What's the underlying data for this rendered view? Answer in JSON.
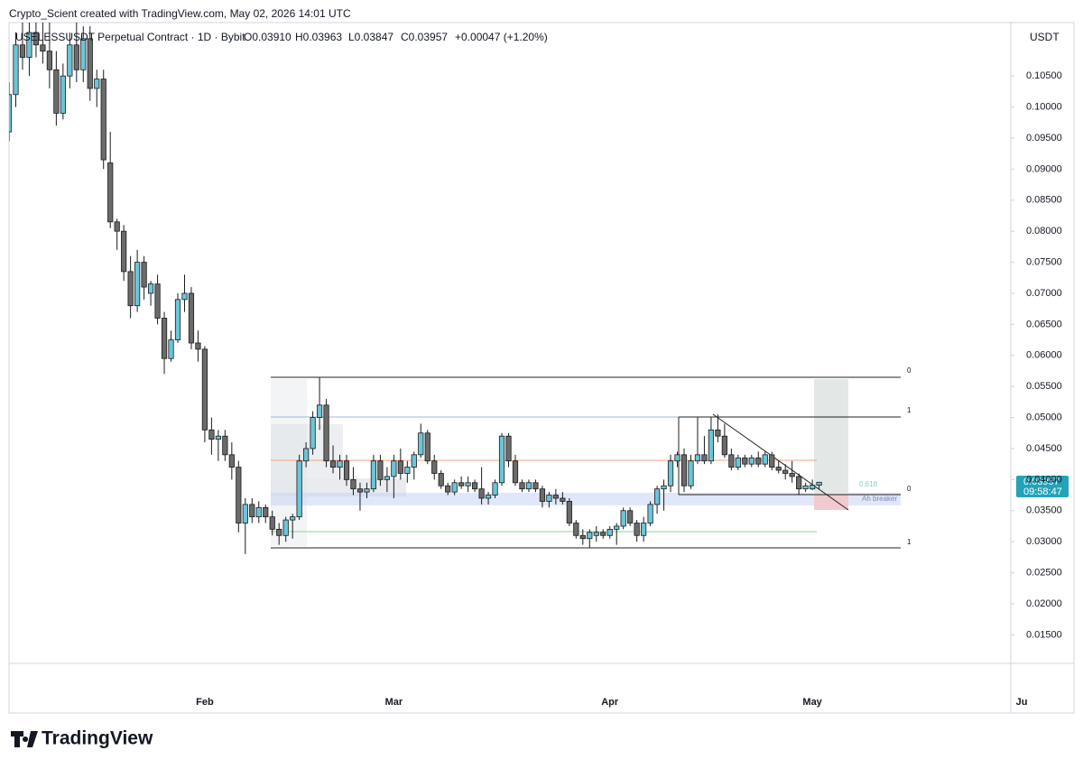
{
  "header": {
    "credit": "Crypto_Scient created with TradingView.com, May 02, 2026 14:01 UTC",
    "symbol": "USELESSUSDT Perpetual Contract · 1D · Bybit",
    "open": "O0.03910",
    "high": "H0.03963",
    "low": "L0.03847",
    "close": "C0.03957",
    "change": "+0.00047 (+1.20%)",
    "currency": "USDT",
    "last_price": "0.03957",
    "countdown": "09:58:47",
    "logo": "TradingView"
  },
  "drawings": {
    "fib_top_0": "0",
    "fib_top_1": "1",
    "fib_right_1": "1",
    "fib_right_0": "0",
    "fib_618": "0.618",
    "breaker": "Ah breaker"
  },
  "chart_data": {
    "type": "candlestick",
    "up_color": "#6cc5da",
    "down_color": "#6b6b6b",
    "outline": "#1a1a1a",
    "ylim": [
      0.0104,
      0.1136
    ],
    "yticks": [
      {
        "value": 0.015,
        "label": "0.01500"
      },
      {
        "value": 0.02,
        "label": "0.02000"
      },
      {
        "value": 0.025,
        "label": "0.02500"
      },
      {
        "value": 0.03,
        "label": "0.03000"
      },
      {
        "value": 0.035,
        "label": "0.03500"
      },
      {
        "value": 0.04,
        "label": "0.04000"
      },
      {
        "value": 0.045,
        "label": "0.04500"
      },
      {
        "value": 0.05,
        "label": "0.05000"
      },
      {
        "value": 0.055,
        "label": "0.05500"
      },
      {
        "value": 0.06,
        "label": "0.06000"
      },
      {
        "value": 0.065,
        "label": "0.06500"
      },
      {
        "value": 0.07,
        "label": "0.07000"
      },
      {
        "value": 0.075,
        "label": "0.07500"
      },
      {
        "value": 0.08,
        "label": "0.08000"
      },
      {
        "value": 0.085,
        "label": "0.08500"
      },
      {
        "value": 0.09,
        "label": "0.09000"
      },
      {
        "value": 0.095,
        "label": "0.09500"
      },
      {
        "value": 0.1,
        "label": "0.10000"
      },
      {
        "value": 0.105,
        "label": "0.10500"
      }
    ],
    "categories": [
      null,
      null,
      null,
      null,
      null,
      null,
      null,
      null,
      null,
      null,
      null,
      null,
      null,
      null,
      null,
      null,
      null,
      null,
      null,
      null,
      null,
      null,
      null,
      null,
      null,
      null,
      null,
      null,
      null,
      "Feb",
      null,
      null,
      null,
      null,
      null,
      null,
      null,
      null,
      null,
      null,
      null,
      null,
      null,
      null,
      null,
      null,
      null,
      null,
      null,
      null,
      null,
      null,
      null,
      null,
      null,
      null,
      null,
      "Mar",
      null,
      null,
      null,
      null,
      null,
      null,
      null,
      null,
      null,
      null,
      null,
      null,
      null,
      null,
      null,
      null,
      null,
      null,
      null,
      null,
      null,
      null,
      null,
      null,
      null,
      null,
      null,
      null,
      null,
      null,
      null,
      "Apr",
      null,
      null,
      null,
      null,
      null,
      null,
      null,
      null,
      null,
      null,
      null,
      null,
      null,
      null,
      null,
      null,
      null,
      null,
      null,
      null,
      null,
      null,
      null,
      null,
      null,
      null,
      null,
      null,
      null,
      "May",
      null,
      null,
      null,
      null,
      null,
      null,
      null,
      null,
      null,
      null,
      null,
      null,
      null,
      null,
      null,
      null,
      null,
      null,
      null,
      null,
      null,
      null,
      null,
      null,
      null,
      null,
      null,
      null,
      null,
      null,
      "Ju"
    ],
    "candles": [
      [
        0.096,
        0.104,
        0.0945,
        0.102
      ],
      [
        0.102,
        0.112,
        0.1,
        0.11
      ],
      [
        0.11,
        0.114,
        0.106,
        0.108
      ],
      [
        0.108,
        0.114,
        0.105,
        0.112
      ],
      [
        0.112,
        0.114,
        0.108,
        0.11
      ],
      [
        0.11,
        0.114,
        0.107,
        0.109
      ],
      [
        0.109,
        0.114,
        0.103,
        0.106
      ],
      [
        0.106,
        0.109,
        0.097,
        0.099
      ],
      [
        0.099,
        0.107,
        0.098,
        0.105
      ],
      [
        0.105,
        0.112,
        0.103,
        0.11
      ],
      [
        0.11,
        0.114,
        0.104,
        0.106
      ],
      [
        0.106,
        0.113,
        0.104,
        0.111
      ],
      [
        0.111,
        0.113,
        0.101,
        0.103
      ],
      [
        0.103,
        0.106,
        0.1,
        0.1045
      ],
      [
        0.1045,
        0.106,
        0.09,
        0.0915
      ],
      [
        0.091,
        0.096,
        0.0805,
        0.0815
      ],
      [
        0.0815,
        0.082,
        0.077,
        0.08
      ],
      [
        0.08,
        0.081,
        0.072,
        0.0735
      ],
      [
        0.0735,
        0.076,
        0.066,
        0.068
      ],
      [
        0.068,
        0.077,
        0.067,
        0.075
      ],
      [
        0.075,
        0.076,
        0.069,
        0.071
      ],
      [
        0.07,
        0.072,
        0.068,
        0.0715
      ],
      [
        0.0715,
        0.073,
        0.065,
        0.066
      ],
      [
        0.066,
        0.067,
        0.057,
        0.0595
      ],
      [
        0.0595,
        0.064,
        0.059,
        0.0625
      ],
      [
        0.0625,
        0.07,
        0.062,
        0.069
      ],
      [
        0.069,
        0.073,
        0.067,
        0.07
      ],
      [
        0.07,
        0.071,
        0.061,
        0.062
      ],
      [
        0.062,
        0.064,
        0.059,
        0.061
      ],
      [
        0.061,
        0.0615,
        0.046,
        0.048
      ],
      [
        0.048,
        0.05,
        0.044,
        0.0465
      ],
      [
        0.0465,
        0.048,
        0.043,
        0.047
      ],
      [
        0.047,
        0.048,
        0.043,
        0.044
      ],
      [
        0.044,
        0.046,
        0.04,
        0.042
      ],
      [
        0.042,
        0.043,
        0.0315,
        0.033
      ],
      [
        0.033,
        0.037,
        0.028,
        0.036
      ],
      [
        0.036,
        0.037,
        0.033,
        0.034
      ],
      [
        0.034,
        0.0365,
        0.033,
        0.0355
      ],
      [
        0.0355,
        0.036,
        0.033,
        0.034
      ],
      [
        0.034,
        0.035,
        0.031,
        0.032
      ],
      [
        0.032,
        0.033,
        0.0295,
        0.031
      ],
      [
        0.031,
        0.034,
        0.03,
        0.0335
      ],
      [
        0.0335,
        0.0345,
        0.0305,
        0.034
      ],
      [
        0.034,
        0.044,
        0.0335,
        0.043
      ],
      [
        0.043,
        0.046,
        0.042,
        0.045
      ],
      [
        0.045,
        0.051,
        0.044,
        0.05
      ],
      [
        0.05,
        0.0565,
        0.048,
        0.052
      ],
      [
        0.052,
        0.053,
        0.042,
        0.043
      ],
      [
        0.043,
        0.0455,
        0.041,
        0.042
      ],
      [
        0.042,
        0.044,
        0.04,
        0.043
      ],
      [
        0.043,
        0.044,
        0.039,
        0.04
      ],
      [
        0.04,
        0.042,
        0.0375,
        0.0385
      ],
      [
        0.0385,
        0.0395,
        0.035,
        0.038
      ],
      [
        0.038,
        0.0395,
        0.037,
        0.0385
      ],
      [
        0.0385,
        0.044,
        0.038,
        0.043
      ],
      [
        0.043,
        0.044,
        0.039,
        0.04
      ],
      [
        0.04,
        0.042,
        0.038,
        0.0405
      ],
      [
        0.0405,
        0.044,
        0.037,
        0.043
      ],
      [
        0.043,
        0.045,
        0.04,
        0.041
      ],
      [
        0.041,
        0.043,
        0.0395,
        0.042
      ],
      [
        0.042,
        0.0445,
        0.04,
        0.044
      ],
      [
        0.044,
        0.049,
        0.0435,
        0.0475
      ],
      [
        0.0475,
        0.048,
        0.0425,
        0.043
      ],
      [
        0.043,
        0.044,
        0.04,
        0.041
      ],
      [
        0.041,
        0.0415,
        0.0385,
        0.039
      ],
      [
        0.039,
        0.0395,
        0.0375,
        0.038
      ],
      [
        0.038,
        0.04,
        0.0375,
        0.0395
      ],
      [
        0.0395,
        0.0405,
        0.0385,
        0.039
      ],
      [
        0.039,
        0.0405,
        0.038,
        0.0395
      ],
      [
        0.0395,
        0.04,
        0.038,
        0.0385
      ],
      [
        0.0385,
        0.042,
        0.036,
        0.037
      ],
      [
        0.037,
        0.038,
        0.036,
        0.0375
      ],
      [
        0.0375,
        0.04,
        0.037,
        0.0395
      ],
      [
        0.0395,
        0.0475,
        0.039,
        0.047
      ],
      [
        0.047,
        0.0475,
        0.042,
        0.043
      ],
      [
        0.043,
        0.044,
        0.039,
        0.0395
      ],
      [
        0.0395,
        0.04,
        0.038,
        0.0385
      ],
      [
        0.0385,
        0.04,
        0.038,
        0.0395
      ],
      [
        0.0395,
        0.04,
        0.038,
        0.0385
      ],
      [
        0.0385,
        0.039,
        0.0355,
        0.0365
      ],
      [
        0.0365,
        0.038,
        0.0355,
        0.0375
      ],
      [
        0.0375,
        0.0385,
        0.036,
        0.037
      ],
      [
        0.037,
        0.038,
        0.036,
        0.0365
      ],
      [
        0.0365,
        0.037,
        0.0325,
        0.033
      ],
      [
        0.033,
        0.0335,
        0.0305,
        0.031
      ],
      [
        0.031,
        0.032,
        0.0295,
        0.0305
      ],
      [
        0.0305,
        0.032,
        0.029,
        0.0315
      ],
      [
        0.031,
        0.0325,
        0.03,
        0.0315
      ],
      [
        0.0315,
        0.032,
        0.0305,
        0.031
      ],
      [
        0.031,
        0.0325,
        0.0305,
        0.032
      ],
      [
        0.032,
        0.033,
        0.0295,
        0.0325
      ],
      [
        0.0325,
        0.0355,
        0.032,
        0.035
      ],
      [
        0.035,
        0.0355,
        0.0325,
        0.033
      ],
      [
        0.033,
        0.0335,
        0.03,
        0.031
      ],
      [
        0.031,
        0.034,
        0.03,
        0.033
      ],
      [
        0.033,
        0.0365,
        0.0325,
        0.036
      ],
      [
        0.036,
        0.039,
        0.0345,
        0.0385
      ],
      [
        0.0385,
        0.04,
        0.035,
        0.039
      ],
      [
        0.039,
        0.044,
        0.038,
        0.043
      ],
      [
        0.043,
        0.0445,
        0.042,
        0.044
      ],
      [
        0.044,
        0.045,
        0.038,
        0.039
      ],
      [
        0.039,
        0.044,
        0.0385,
        0.043
      ],
      [
        0.043,
        0.05,
        0.0425,
        0.044
      ],
      [
        0.044,
        0.047,
        0.0425,
        0.043
      ],
      [
        0.043,
        0.05,
        0.0425,
        0.048
      ],
      [
        0.048,
        0.0505,
        0.046,
        0.047
      ],
      [
        0.047,
        0.049,
        0.0435,
        0.044
      ],
      [
        0.044,
        0.045,
        0.0415,
        0.042
      ],
      [
        0.042,
        0.044,
        0.0415,
        0.0435
      ],
      [
        0.0435,
        0.044,
        0.042,
        0.0425
      ],
      [
        0.0425,
        0.044,
        0.042,
        0.0435
      ],
      [
        0.0435,
        0.0445,
        0.042,
        0.0425
      ],
      [
        0.0425,
        0.0445,
        0.042,
        0.044
      ],
      [
        0.044,
        0.0445,
        0.0415,
        0.042
      ],
      [
        0.042,
        0.043,
        0.041,
        0.0415
      ],
      [
        0.0415,
        0.0425,
        0.04,
        0.041
      ],
      [
        0.041,
        0.043,
        0.0395,
        0.0405
      ],
      [
        0.0405,
        0.041,
        0.0375,
        0.0385
      ],
      [
        0.0385,
        0.0395,
        0.038,
        0.039
      ],
      [
        0.0385,
        0.04,
        0.0383,
        0.0391
      ],
      [
        0.0391,
        0.03963,
        0.03847,
        0.03957
      ],
      null,
      null,
      null,
      null,
      null,
      null,
      null,
      null,
      null,
      null,
      null,
      null,
      null,
      null,
      null,
      null,
      null,
      null,
      null,
      null,
      null,
      null,
      null,
      null,
      null,
      null,
      null,
      null,
      null,
      null
    ]
  }
}
